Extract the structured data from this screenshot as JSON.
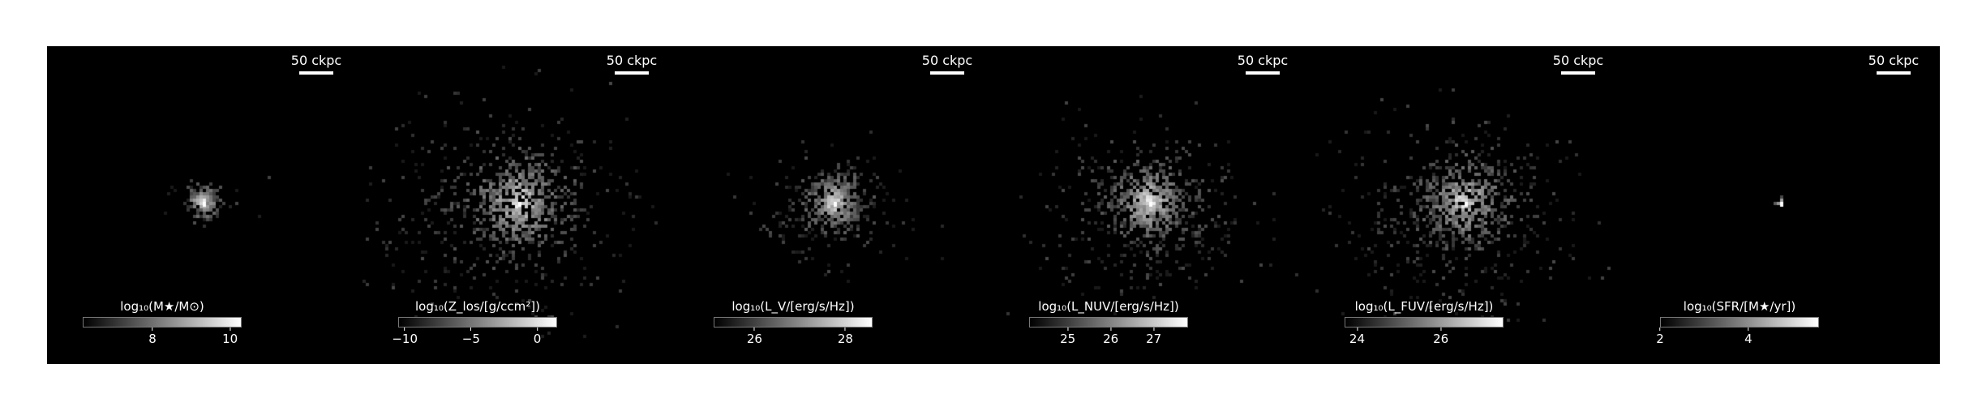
{
  "panels": [
    {
      "scalebar_label": "50 ckpc",
      "colorbar_label": "log₁₀(M★/M⊙)",
      "ticks": [
        {
          "label": "8",
          "value": 8
        },
        {
          "label": "10",
          "value": 10
        }
      ],
      "cb_range": [
        6.2,
        10.3
      ]
    },
    {
      "scalebar_label": "50 ckpc",
      "colorbar_label": "log₁₀(Z_los/[g/ccm²])",
      "ticks": [
        {
          "label": "−10",
          "value": -10
        },
        {
          "label": "−5",
          "value": -5
        },
        {
          "label": "0",
          "value": 0
        }
      ],
      "cb_range": [
        -10.5,
        1.5
      ]
    },
    {
      "scalebar_label": "50 ckpc",
      "colorbar_label": "log₁₀(L_V/[erg/s/Hz])",
      "ticks": [
        {
          "label": "26",
          "value": 26
        },
        {
          "label": "28",
          "value": 28
        }
      ],
      "cb_range": [
        25.1,
        28.6
      ]
    },
    {
      "scalebar_label": "50 ckpc",
      "colorbar_label": "log₁₀(L_NUV/[erg/s/Hz])",
      "ticks": [
        {
          "label": "25",
          "value": 25
        },
        {
          "label": "26",
          "value": 26
        },
        {
          "label": "27",
          "value": 27
        }
      ],
      "cb_range": [
        24.1,
        27.8
      ]
    },
    {
      "scalebar_label": "50 ckpc",
      "colorbar_label": "log₁₀(L_FUV/[erg/s/Hz])",
      "ticks": [
        {
          "label": "24",
          "value": 24
        },
        {
          "label": "26",
          "value": 26
        }
      ],
      "cb_range": [
        23.7,
        27.5
      ]
    },
    {
      "scalebar_label": "50 ckpc",
      "colorbar_label": "log₁₀(SFR/[M★/yr])",
      "ticks": [
        {
          "label": "2",
          "value": 2
        },
        {
          "label": "4",
          "value": 4
        }
      ],
      "cb_range": [
        2.0,
        5.6
      ]
    }
  ]
}
